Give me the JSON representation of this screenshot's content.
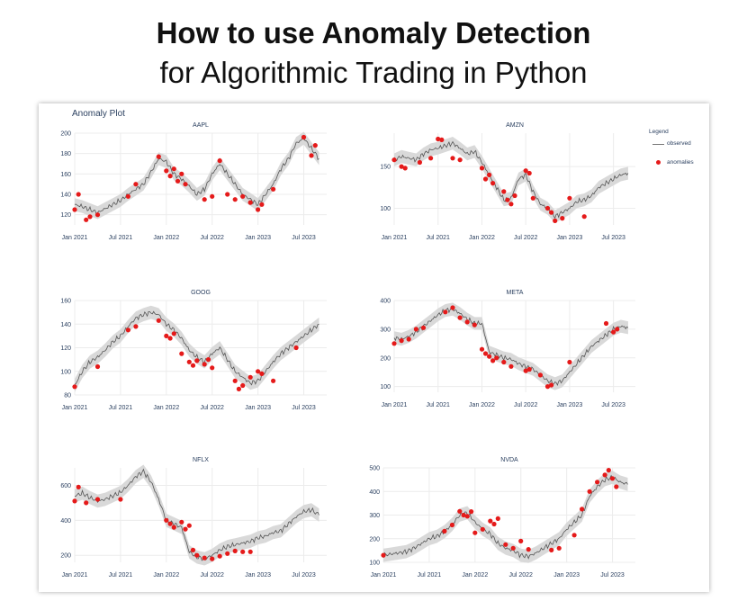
{
  "headline": {
    "line1": "How to use Anomaly Detection",
    "line2": "for Algorithmic Trading in Python"
  },
  "figure": {
    "title": "Anomaly Plot",
    "legend": {
      "title": "Legend",
      "items": [
        "observed",
        "anomalies"
      ]
    }
  },
  "colors": {
    "observed": "#555555",
    "band": "#d9d9d9",
    "anomaly": "#e51a1a",
    "grid": "#ececec",
    "axis_text": "#2a3f5f"
  },
  "chart_data": [
    {
      "type": "line",
      "title": "AAPL",
      "ylim": [
        110,
        200
      ],
      "x_ticks": [
        "Jan 2021",
        "Jul 2021",
        "Jan 2022",
        "Jul 2022",
        "Jan 2023",
        "Jul 2023"
      ],
      "y_ticks": [
        120,
        140,
        160,
        180,
        200
      ],
      "series": [
        {
          "x": [
            0,
            1,
            2,
            3,
            4,
            5,
            6,
            7,
            8,
            9,
            10,
            11,
            12,
            13,
            14,
            15,
            16,
            17,
            18,
            19,
            20,
            21,
            22,
            23,
            24,
            25,
            26,
            27,
            28,
            29,
            30,
            31,
            32
          ],
          "values": [
            130,
            128,
            125,
            122,
            126,
            130,
            134,
            140,
            145,
            150,
            162,
            175,
            172,
            160,
            155,
            148,
            140,
            145,
            160,
            170,
            160,
            150,
            140,
            135,
            130,
            140,
            150,
            165,
            175,
            190,
            195,
            185,
            175
          ]
        },
        {
          "x": [
            0,
            0.5,
            1.5,
            2,
            3,
            7,
            8,
            11,
            12,
            12.5,
            13,
            13.5,
            14,
            14.5,
            17,
            18,
            19,
            20,
            21,
            22,
            23,
            24,
            24.5,
            26,
            30,
            31,
            31.5
          ],
          "values": [
            125,
            140,
            115,
            118,
            120,
            138,
            150,
            177,
            163,
            158,
            165,
            153,
            160,
            150,
            135,
            138,
            173,
            140,
            135,
            138,
            132,
            125,
            130,
            145,
            196,
            178,
            188
          ]
        }
      ]
    },
    {
      "type": "line",
      "title": "AMZN",
      "ylim": [
        80,
        190
      ],
      "x_ticks": [
        "Jan 2021",
        "Jul 2021",
        "Jan 2022",
        "Jul 2022",
        "Jan 2023",
        "Jul 2023"
      ],
      "y_ticks": [
        100,
        150
      ],
      "series": [
        {
          "x": [
            0,
            1,
            2,
            3,
            4,
            5,
            6,
            7,
            8,
            9,
            10,
            11,
            12,
            13,
            14,
            15,
            16,
            17,
            18,
            19,
            20,
            21,
            22,
            23,
            24,
            25,
            26,
            27,
            28,
            29,
            30,
            31,
            32
          ],
          "values": [
            158,
            162,
            160,
            158,
            165,
            170,
            172,
            175,
            178,
            172,
            165,
            168,
            155,
            140,
            125,
            110,
            112,
            135,
            140,
            120,
            105,
            100,
            90,
            95,
            100,
            108,
            110,
            115,
            125,
            130,
            135,
            140,
            142
          ]
        },
        {
          "x": [
            0,
            1,
            1.5,
            3.5,
            5,
            6,
            6.5,
            8,
            9,
            12,
            12.5,
            13,
            13.5,
            15,
            15.5,
            16,
            16.5,
            18,
            18.5,
            19,
            21,
            21.5,
            22,
            23,
            24,
            26
          ],
          "values": [
            158,
            150,
            148,
            155,
            160,
            183,
            182,
            160,
            158,
            148,
            135,
            140,
            130,
            120,
            110,
            105,
            115,
            145,
            142,
            112,
            100,
            95,
            85,
            88,
            112,
            90
          ]
        }
      ]
    },
    {
      "type": "line",
      "title": "GOOG",
      "ylim": [
        80,
        160
      ],
      "x_ticks": [
        "Jan 2021",
        "Jul 2021",
        "Jan 2022",
        "Jul 2022",
        "Jan 2023",
        "Jul 2023"
      ],
      "y_ticks": [
        80,
        100,
        120,
        140,
        160
      ],
      "series": [
        {
          "x": [
            0,
            1,
            2,
            3,
            4,
            5,
            6,
            7,
            8,
            9,
            10,
            11,
            12,
            13,
            14,
            15,
            16,
            17,
            18,
            19,
            20,
            21,
            22,
            23,
            24,
            25,
            26,
            27,
            28,
            29,
            30,
            31,
            32
          ],
          "values": [
            88,
            100,
            108,
            112,
            118,
            125,
            130,
            138,
            145,
            148,
            150,
            148,
            140,
            135,
            128,
            118,
            112,
            108,
            115,
            120,
            110,
            100,
            95,
            90,
            92,
            100,
            108,
            115,
            120,
            125,
            130,
            135,
            140
          ]
        },
        {
          "x": [
            0,
            3,
            7,
            8,
            11,
            12,
            12.5,
            13,
            14,
            15,
            15.5,
            16,
            17,
            17.5,
            18,
            21,
            21.5,
            22,
            23,
            24,
            24.5,
            26,
            29
          ],
          "values": [
            87,
            104,
            135,
            138,
            143,
            130,
            128,
            132,
            115,
            108,
            105,
            109,
            106,
            110,
            103,
            92,
            85,
            88,
            95,
            100,
            98,
            92,
            120
          ]
        }
      ]
    },
    {
      "type": "line",
      "title": "META",
      "ylim": [
        80,
        400
      ],
      "x_ticks": [
        "Jan 2021",
        "Jul 2021",
        "Jan 2022",
        "Jul 2022",
        "Jan 2023",
        "Jul 2023"
      ],
      "y_ticks": [
        100,
        200,
        300,
        400
      ],
      "series": [
        {
          "x": [
            0,
            1,
            2,
            3,
            4,
            5,
            6,
            7,
            8,
            9,
            10,
            11,
            12,
            13,
            14,
            15,
            16,
            17,
            18,
            19,
            20,
            21,
            22,
            23,
            24,
            25,
            26,
            27,
            28,
            29,
            30,
            31,
            32
          ],
          "values": [
            270,
            265,
            275,
            290,
            310,
            330,
            350,
            365,
            370,
            355,
            335,
            320,
            320,
            220,
            210,
            200,
            195,
            180,
            170,
            160,
            140,
            120,
            110,
            120,
            150,
            180,
            210,
            240,
            260,
            280,
            300,
            310,
            305
          ]
        },
        {
          "x": [
            0,
            1,
            2,
            3,
            4,
            7,
            8,
            9,
            10,
            11,
            12,
            12.5,
            13,
            13.5,
            14,
            15,
            16,
            18,
            18.5,
            20,
            21,
            21.5,
            24,
            29,
            30,
            30.5
          ],
          "values": [
            250,
            260,
            265,
            300,
            305,
            360,
            375,
            340,
            325,
            315,
            230,
            215,
            205,
            190,
            200,
            185,
            170,
            155,
            160,
            140,
            100,
            105,
            185,
            320,
            290,
            300
          ]
        }
      ]
    },
    {
      "type": "line",
      "title": "NFLX",
      "ylim": [
        160,
        700
      ],
      "x_ticks": [
        "Jan 2021",
        "Jul 2021",
        "Jan 2022",
        "Jul 2022",
        "Jan 2023",
        "Jul 2023"
      ],
      "y_ticks": [
        200,
        400,
        600
      ],
      "series": [
        {
          "x": [
            0,
            1,
            2,
            3,
            4,
            5,
            6,
            7,
            8,
            9,
            10,
            11,
            12,
            13,
            14,
            15,
            16,
            17,
            18,
            19,
            20,
            21,
            22,
            23,
            24,
            25,
            26,
            27,
            28,
            29,
            30,
            31,
            32
          ],
          "values": [
            540,
            555,
            530,
            510,
            520,
            540,
            560,
            600,
            650,
            680,
            620,
            520,
            400,
            380,
            360,
            220,
            190,
            180,
            200,
            230,
            250,
            260,
            270,
            280,
            300,
            310,
            330,
            340,
            380,
            420,
            450,
            460,
            430
          ]
        },
        {
          "x": [
            0,
            0.5,
            1.5,
            3,
            6,
            12,
            12.5,
            13,
            14,
            14.5,
            15,
            15.5,
            16,
            17,
            18,
            19,
            20,
            21,
            22,
            23
          ],
          "values": [
            510,
            590,
            500,
            520,
            520,
            400,
            380,
            360,
            390,
            350,
            370,
            230,
            200,
            185,
            180,
            195,
            210,
            225,
            220,
            220
          ]
        }
      ]
    },
    {
      "type": "line",
      "title": "NVDA",
      "ylim": [
        100,
        500
      ],
      "x_ticks": [
        "Jan 2021",
        "Jul 2021",
        "Jan 2022",
        "Jul 2022",
        "Jan 2023",
        "Jul 2023"
      ],
      "y_ticks": [
        100,
        200,
        300,
        400,
        500
      ],
      "series": [
        {
          "x": [
            0,
            1,
            2,
            3,
            4,
            5,
            6,
            7,
            8,
            9,
            10,
            11,
            12,
            13,
            14,
            15,
            16,
            17,
            18,
            19,
            20,
            21,
            22,
            23,
            24,
            25,
            26,
            27,
            28,
            29,
            30,
            31,
            32
          ],
          "values": [
            130,
            135,
            140,
            145,
            160,
            180,
            200,
            210,
            230,
            260,
            300,
            310,
            270,
            240,
            220,
            180,
            160,
            150,
            130,
            125,
            140,
            160,
            180,
            200,
            240,
            270,
            300,
            380,
            420,
            450,
            460,
            440,
            430
          ]
        },
        {
          "x": [
            0,
            8,
            9,
            10,
            10.5,
            11,
            11.5,
            12,
            13,
            14,
            14.5,
            15,
            16,
            17,
            18,
            19,
            22,
            23,
            25,
            26,
            27,
            28,
            29,
            29.5,
            30,
            30.5
          ],
          "values": [
            130,
            232,
            258,
            316,
            300,
            295,
            315,
            225,
            240,
            275,
            262,
            285,
            175,
            160,
            190,
            155,
            152,
            160,
            215,
            325,
            400,
            440,
            470,
            490,
            455,
            420
          ]
        }
      ]
    }
  ]
}
